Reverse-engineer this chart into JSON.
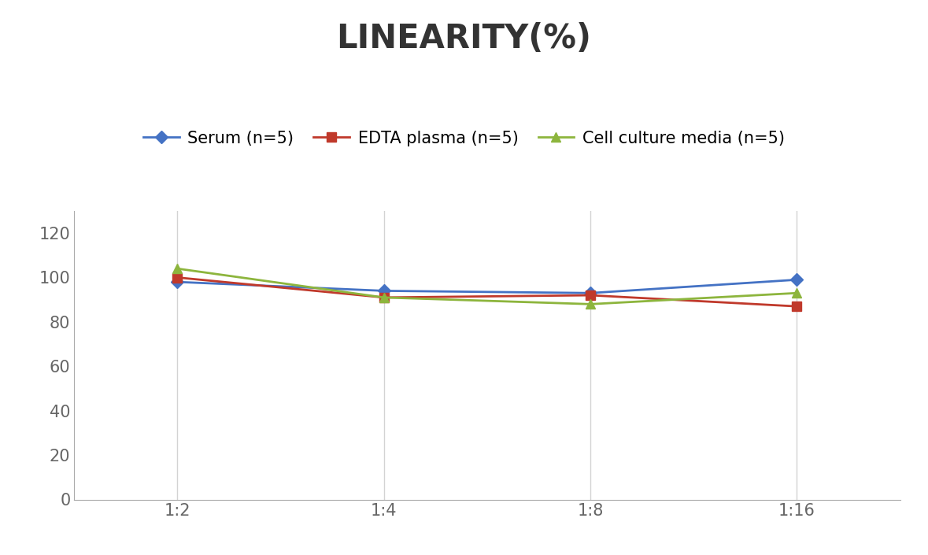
{
  "title": "LINEARITY(%)",
  "x_labels": [
    "1:2",
    "1:4",
    "1:8",
    "1:16"
  ],
  "x_positions": [
    0,
    1,
    2,
    3
  ],
  "series": [
    {
      "label": "Serum (n=5)",
      "values": [
        98,
        94,
        93,
        99
      ],
      "color": "#4472C4",
      "marker": "D",
      "marker_size": 8,
      "linewidth": 2
    },
    {
      "label": "EDTA plasma (n=5)",
      "values": [
        100,
        91,
        92,
        87
      ],
      "color": "#C0392B",
      "marker": "s",
      "marker_size": 8,
      "linewidth": 2
    },
    {
      "label": "Cell culture media (n=5)",
      "values": [
        104,
        91,
        88,
        93
      ],
      "color": "#8DB53D",
      "marker": "^",
      "marker_size": 9,
      "linewidth": 2
    }
  ],
  "ylim": [
    0,
    130
  ],
  "yticks": [
    0,
    20,
    40,
    60,
    80,
    100,
    120
  ],
  "title_fontsize": 30,
  "legend_fontsize": 15,
  "tick_fontsize": 15,
  "background_color": "#ffffff",
  "grid_color": "#d3d3d3"
}
